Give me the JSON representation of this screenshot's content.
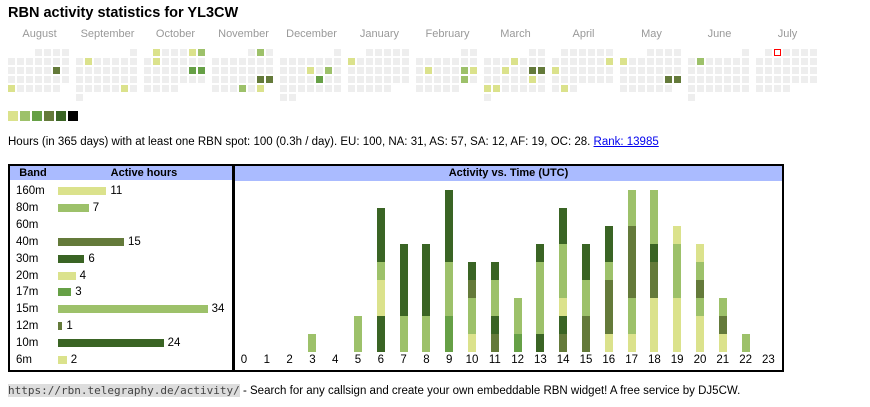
{
  "title": "RBN activity statistics for YL3CW",
  "colors": {
    "levels": [
      "#eeeeee",
      "#dbe28c",
      "#9dc16a",
      "#66a046",
      "#647a3a",
      "#3a6424",
      "#000000"
    ],
    "header": "#aabbff",
    "today": "#ff0000"
  },
  "calendar": {
    "months": [
      {
        "name": "August",
        "first_weekday": 3,
        "days": 31,
        "active": {
          "17": 4,
          "26": 1
        }
      },
      {
        "name": "September",
        "first_weekday": 6,
        "days": 30,
        "active": {
          "3": 1,
          "28": 1
        }
      },
      {
        "name": "October",
        "first_weekday": 1,
        "days": 31,
        "active": {
          "1": 1,
          "5": 1,
          "6": 2,
          "8": 1,
          "19": 3,
          "20": 3
        }
      },
      {
        "name": "November",
        "first_weekday": 4,
        "days": 30,
        "active": {
          "2": 2,
          "23": 4,
          "24": 4,
          "28": 2,
          "30": 1
        }
      },
      {
        "name": "December",
        "first_weekday": 6,
        "days": 31,
        "active": {
          "12": 1,
          "14": 2,
          "20": 3
        }
      },
      {
        "name": "January",
        "first_weekday": 2,
        "days": 31,
        "active": {
          "6": 1
        }
      },
      {
        "name": "February",
        "first_weekday": 5,
        "days": 28,
        "active": {
          "11": 1,
          "15": 2,
          "16": 1,
          "22": 2
        }
      },
      {
        "name": "March",
        "first_weekday": 5,
        "days": 31,
        "active": {
          "6": 1,
          "12": 1,
          "15": 4,
          "16": 4,
          "22": 1,
          "24": 1,
          "25": 1
        }
      },
      {
        "name": "April",
        "first_weekday": 1,
        "days": 30,
        "active": {
          "13": 1,
          "14": 1,
          "29": 1
        }
      },
      {
        "name": "May",
        "first_weekday": 3,
        "days": 31,
        "active": {
          "5": 1,
          "24": 4,
          "25": 4
        }
      },
      {
        "name": "June",
        "first_weekday": 6,
        "days": 30,
        "active": {
          "3": 2
        }
      },
      {
        "name": "July",
        "first_weekday": 1,
        "days": 31,
        "active": {},
        "today": 2
      }
    ]
  },
  "summary": {
    "text": "Hours (in 365 days) with at least one RBN spot: 100 (0.3h / day). EU: 100, NA: 31, AS: 57, SA: 12, AF: 19, OC: 28.",
    "rank_label": "Rank: 13985"
  },
  "bands": {
    "header_band": "Band",
    "header_hours": "Active hours",
    "rows": [
      {
        "band": "160m",
        "hours": 11,
        "level": 1
      },
      {
        "band": "80m",
        "hours": 7,
        "level": 2
      },
      {
        "band": "60m",
        "hours": 0,
        "level": 0
      },
      {
        "band": "40m",
        "hours": 15,
        "level": 4
      },
      {
        "band": "30m",
        "hours": 6,
        "level": 5
      },
      {
        "band": "20m",
        "hours": 4,
        "level": 1
      },
      {
        "band": "17m",
        "hours": 3,
        "level": 3
      },
      {
        "band": "15m",
        "hours": 34,
        "level": 2
      },
      {
        "band": "12m",
        "hours": 1,
        "level": 4
      },
      {
        "band": "10m",
        "hours": 24,
        "level": 5
      },
      {
        "band": "6m",
        "hours": 2,
        "level": 1
      }
    ]
  },
  "chart_data": {
    "type": "bar",
    "title": "Activity vs. Time (UTC)",
    "xlabel": "",
    "ylabel": "",
    "categories": [
      "0",
      "1",
      "2",
      "3",
      "4",
      "5",
      "6",
      "7",
      "8",
      "9",
      "10",
      "11",
      "12",
      "13",
      "14",
      "15",
      "16",
      "17",
      "18",
      "19",
      "20",
      "21",
      "22",
      "23"
    ],
    "stacks": [
      [],
      [],
      [],
      [
        [
          2,
          1
        ]
      ],
      [],
      [
        [
          2,
          2
        ]
      ],
      [
        [
          5,
          2
        ],
        [
          1,
          2
        ],
        [
          2,
          1
        ],
        [
          5,
          3
        ]
      ],
      [
        [
          2,
          2
        ],
        [
          5,
          4
        ]
      ],
      [
        [
          2,
          2
        ],
        [
          5,
          4
        ]
      ],
      [
        [
          3,
          2
        ],
        [
          2,
          3
        ],
        [
          5,
          4
        ]
      ],
      [
        [
          1,
          1
        ],
        [
          2,
          2
        ],
        [
          4,
          1
        ],
        [
          5,
          1
        ]
      ],
      [
        [
          4,
          1
        ],
        [
          5,
          1
        ],
        [
          2,
          2
        ],
        [
          5,
          1
        ]
      ],
      [
        [
          3,
          1
        ],
        [
          2,
          2
        ]
      ],
      [
        [
          5,
          1
        ],
        [
          2,
          4
        ],
        [
          5,
          1
        ]
      ],
      [
        [
          4,
          1
        ],
        [
          5,
          1
        ],
        [
          1,
          1
        ],
        [
          2,
          3
        ],
        [
          5,
          2
        ]
      ],
      [
        [
          4,
          2
        ],
        [
          2,
          2
        ],
        [
          5,
          2
        ]
      ],
      [
        [
          1,
          1
        ],
        [
          4,
          3
        ],
        [
          2,
          1
        ],
        [
          5,
          2
        ]
      ],
      [
        [
          1,
          1
        ],
        [
          2,
          2
        ],
        [
          4,
          4
        ],
        [
          2,
          2
        ]
      ],
      [
        [
          1,
          3
        ],
        [
          4,
          2
        ],
        [
          5,
          1
        ],
        [
          2,
          3
        ]
      ],
      [
        [
          1,
          3
        ],
        [
          2,
          3
        ],
        [
          1,
          1
        ]
      ],
      [
        [
          1,
          2
        ],
        [
          2,
          1
        ],
        [
          4,
          1
        ],
        [
          2,
          1
        ],
        [
          1,
          1
        ]
      ],
      [
        [
          1,
          1
        ],
        [
          4,
          1
        ],
        [
          2,
          1
        ]
      ],
      [
        [
          2,
          1
        ]
      ],
      []
    ],
    "stack_format": "[color level, hours] bottom to top"
  },
  "footer": {
    "url": "https://rbn.telegraphy.de/activity/",
    "text": " - Search for any callsign and create your own embeddable RBN widget! A free service by DJ5CW."
  }
}
